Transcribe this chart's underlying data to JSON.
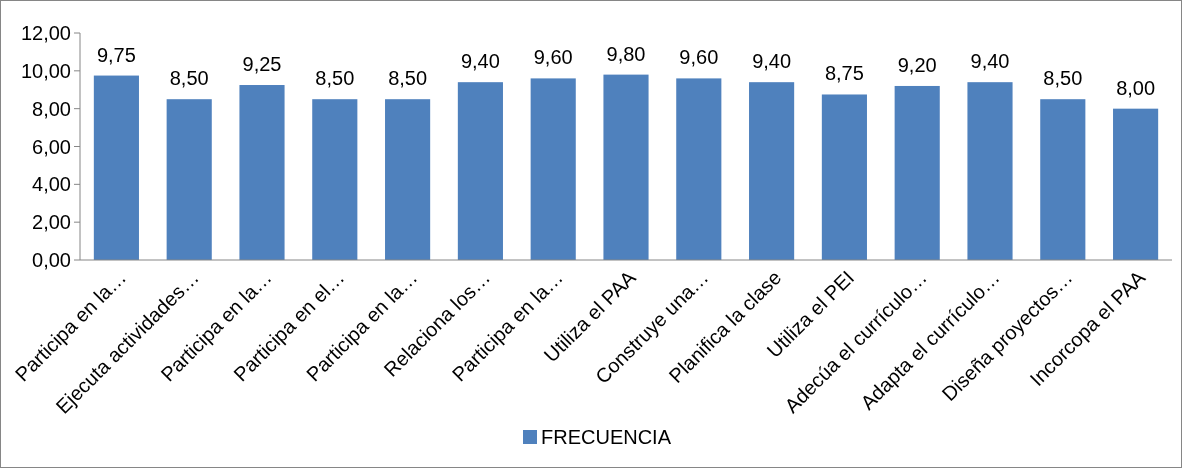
{
  "chart_data": {
    "type": "bar",
    "categories": [
      "Participa en la…",
      "Ejecuta actividades…",
      "Participa en la…",
      "Participa en el…",
      "Participa en la…",
      "Relaciona los…",
      "Participa en la…",
      "Utiliza el PAA",
      "Construye una…",
      "Planifica la clase",
      "Utiliza el PEI",
      "Adecúa el currículo…",
      "Adapta el currículo…",
      "Diseña proyectos…",
      "Incorcopa el PAA"
    ],
    "series": [
      {
        "name": "FRECUENCIA",
        "color": "#4f81bd",
        "values": [
          9.75,
          8.5,
          9.25,
          8.5,
          8.5,
          9.4,
          9.6,
          9.8,
          9.6,
          9.4,
          8.75,
          9.2,
          9.4,
          8.5,
          8.0
        ],
        "value_labels": [
          "9,75",
          "8,50",
          "9,25",
          "8,50",
          "8,50",
          "9,40",
          "9,60",
          "9,80",
          "9,60",
          "9,40",
          "8,75",
          "9,20",
          "9,40",
          "8,50",
          "8,00"
        ]
      }
    ],
    "ylim": [
      0,
      12
    ],
    "yticks": [
      {
        "value": 0,
        "label": "0,00"
      },
      {
        "value": 2,
        "label": "2,00"
      },
      {
        "value": 4,
        "label": "4,00"
      },
      {
        "value": 6,
        "label": "6,00"
      },
      {
        "value": 8,
        "label": "8,00"
      },
      {
        "value": 10,
        "label": "10,00"
      },
      {
        "value": 12,
        "label": "12,00"
      }
    ],
    "grid": false,
    "legend": "bottom"
  }
}
